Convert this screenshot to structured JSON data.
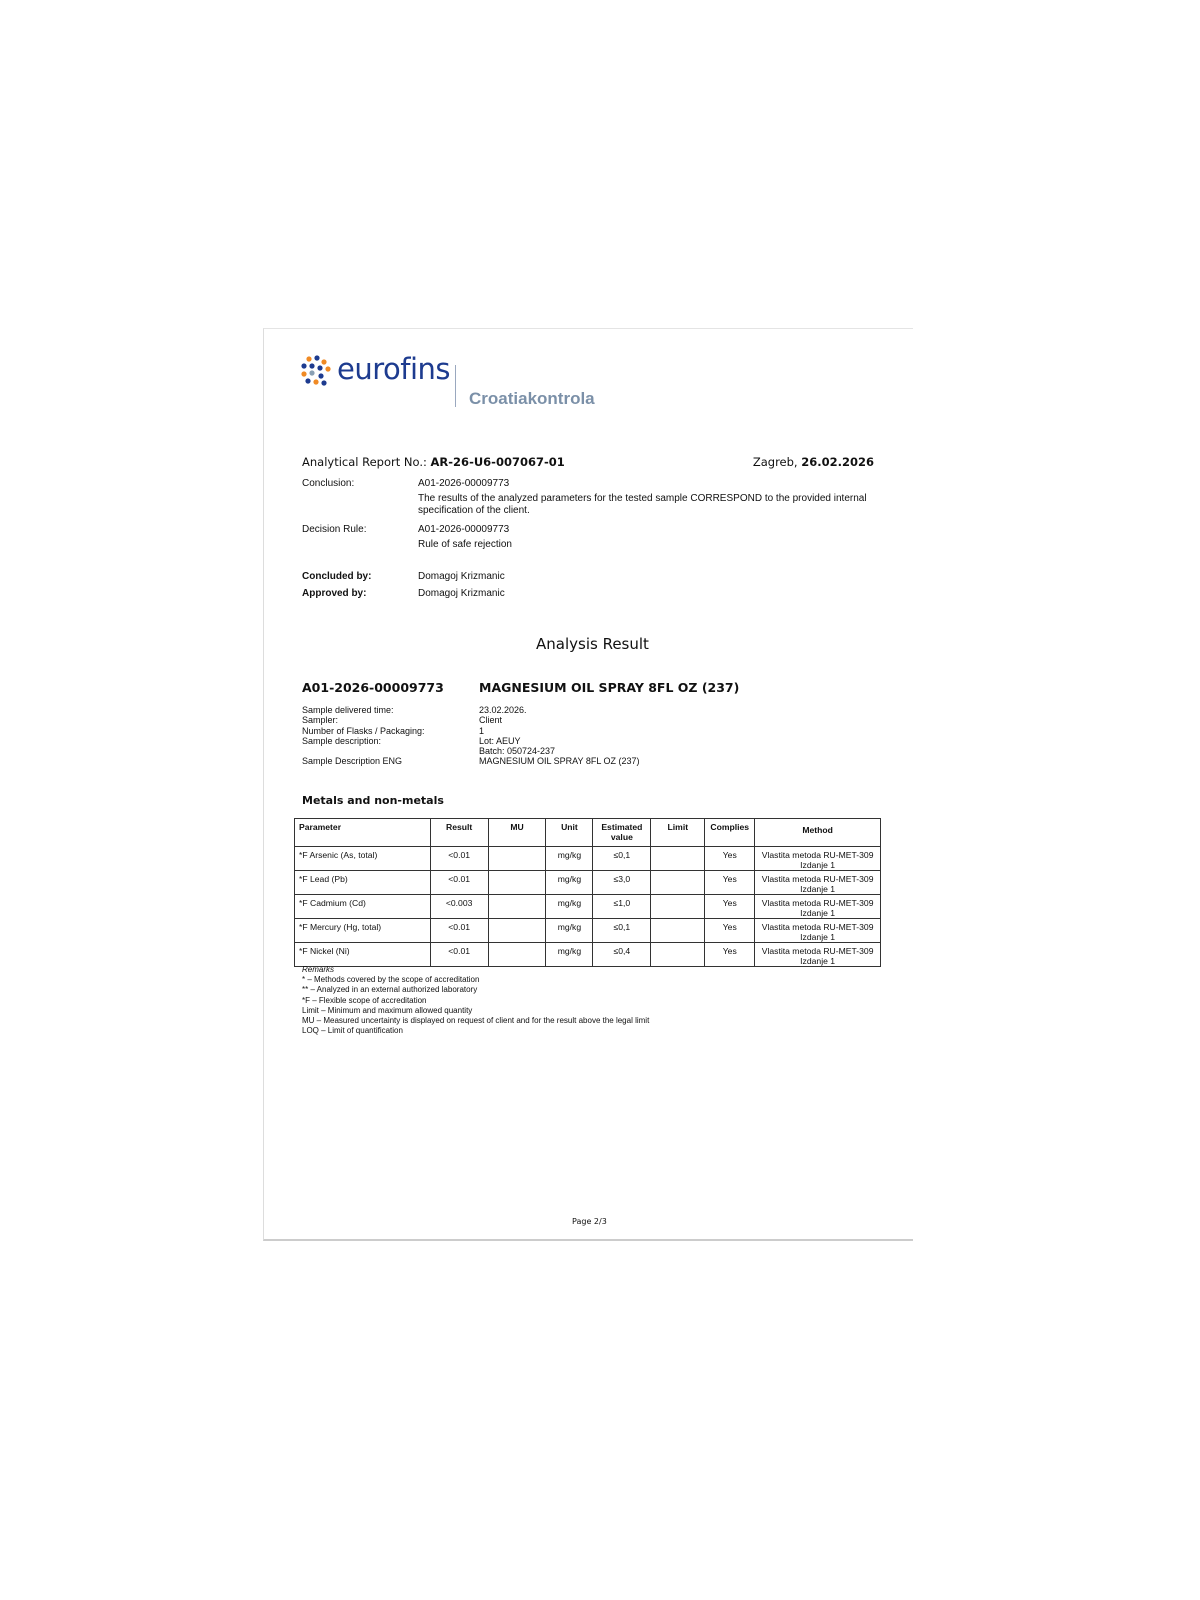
{
  "header": {
    "brand": "eurofins",
    "subbrand": "Croatiakontrola"
  },
  "report": {
    "label": "Analytical Report No.:",
    "number": "AR-26-U6-007067-01",
    "place": "Zagreb,",
    "date": "26.02.2026"
  },
  "conclusion": {
    "label": "Conclusion:",
    "id": "A01-2026-00009773",
    "text": "The results of the analyzed parameters for the tested sample CORRESPOND to the provided internal specification of the client."
  },
  "decision": {
    "label": "Decision Rule:",
    "id": "A01-2026-00009773",
    "text": "Rule of safe rejection"
  },
  "concluded": {
    "label": "Concluded by:",
    "value": "Domagoj Krizmanic"
  },
  "approved": {
    "label": "Approved by:",
    "value": "Domagoj Krizmanic"
  },
  "section_title": "Analysis Result",
  "sample": {
    "id": "A01-2026-00009773",
    "name": "MAGNESIUM OIL SPRAY 8FL OZ (237)",
    "fields": [
      {
        "label": "Sample delivered time:",
        "value": "23.02.2026."
      },
      {
        "label": "Sampler:",
        "value": "Client"
      },
      {
        "label": "Number of Flasks / Packaging:",
        "value": "1"
      },
      {
        "label": "Sample description:",
        "value": "Lot: AEUY",
        "value2": "Batch: 050724-237"
      },
      {
        "label": "Sample Description ENG",
        "value": "MAGNESIUM OIL SPRAY 8FL OZ (237)"
      }
    ]
  },
  "table": {
    "title": "Metals and non-metals",
    "headers": [
      "Parameter",
      "Result",
      "MU",
      "Unit",
      "Estimated value",
      "Limit",
      "Complies",
      "Method"
    ],
    "rows": [
      [
        "*F Arsenic (As, total)",
        "<0.01",
        "",
        "mg/kg",
        "≤0,1",
        "",
        "Yes",
        "Vlastita metoda RU-MET-309 Izdanje 1"
      ],
      [
        "*F Lead (Pb)",
        "<0.01",
        "",
        "mg/kg",
        "≤3,0",
        "",
        "Yes",
        "Vlastita metoda RU-MET-309 Izdanje 1"
      ],
      [
        "*F Cadmium (Cd)",
        "<0.003",
        "",
        "mg/kg",
        "≤1,0",
        "",
        "Yes",
        "Vlastita metoda RU-MET-309 Izdanje 1"
      ],
      [
        "*F Mercury (Hg, total)",
        "<0.01",
        "",
        "mg/kg",
        "≤0,1",
        "",
        "Yes",
        "Vlastita metoda RU-MET-309 Izdanje 1"
      ],
      [
        "*F Nickel (Ni)",
        "<0.01",
        "",
        "mg/kg",
        "≤0,4",
        "",
        "Yes",
        "Vlastita metoda RU-MET-309 Izdanje 1"
      ]
    ]
  },
  "remarks": {
    "title": "Remarks",
    "lines": [
      "* – Methods covered by the scope of accreditation",
      "** – Analyzed in an external authorized laboratory",
      "*F – Flexible scope of accreditation",
      "Limit – Minimum and maximum allowed quantity",
      "MU – Measured uncertainty is displayed on request of client and for the result above the legal limit",
      "LOQ – Limit of quantification"
    ]
  },
  "footer": {
    "page": "Page 2/3"
  },
  "colors": {
    "brand": "#1d3b8f",
    "sub": "#7b90a8",
    "orange": "#f08a24"
  }
}
